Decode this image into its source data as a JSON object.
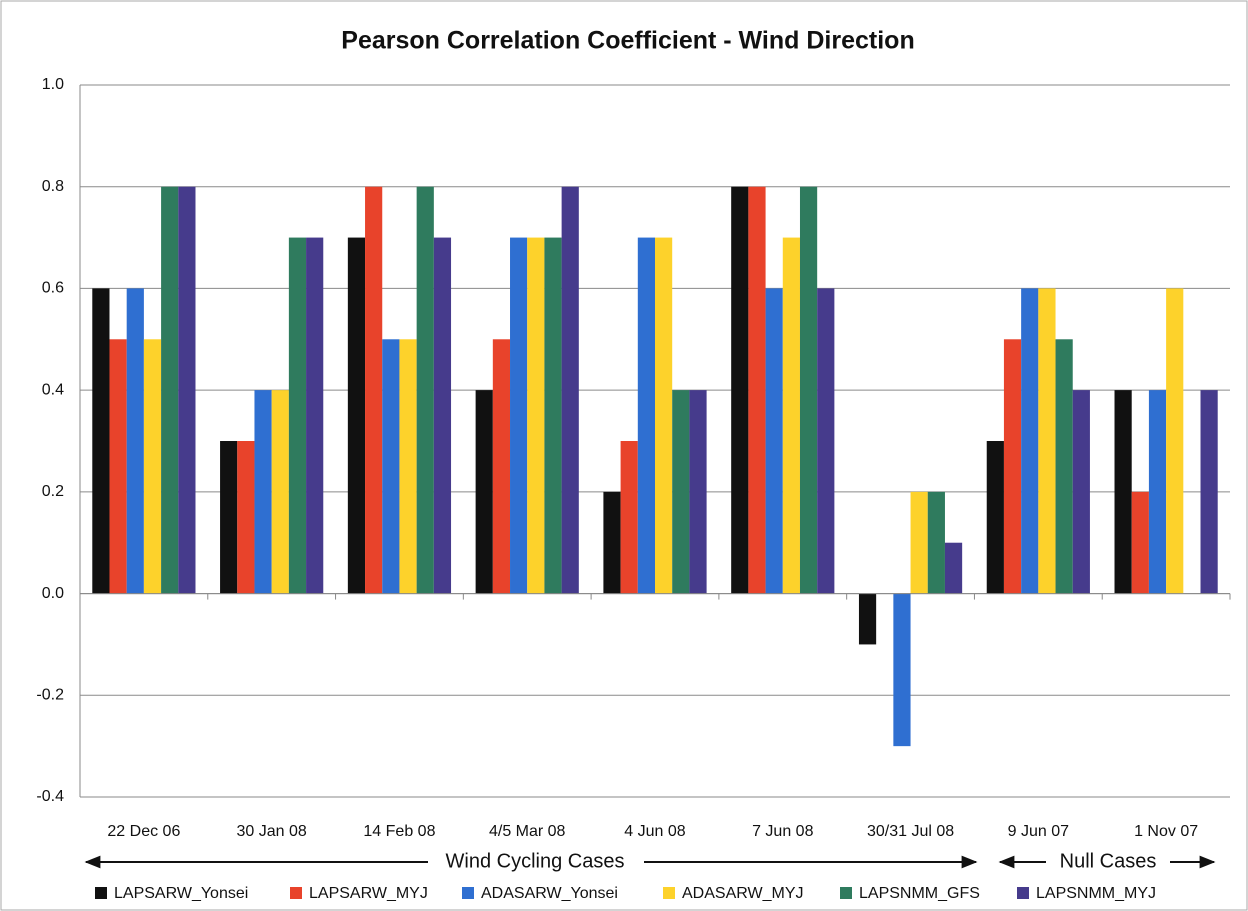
{
  "chart_data": {
    "type": "bar",
    "title": "Pearson Correlation Coefficient - Wind Direction",
    "categories": [
      "22 Dec 06",
      "30 Jan 08",
      "14 Feb 08",
      "4/5 Mar 08",
      "4 Jun 08",
      "7 Jun 08",
      "30/31 Jul 08",
      "9 Jun 07",
      "1 Nov 07"
    ],
    "series": [
      {
        "name": "LAPSARW_Yonsei",
        "color": "#111111",
        "values": [
          0.6,
          0.3,
          0.7,
          0.4,
          0.2,
          0.8,
          -0.1,
          0.3,
          0.4
        ]
      },
      {
        "name": "LAPSARW_MYJ",
        "color": "#e8432b",
        "values": [
          0.5,
          0.3,
          0.8,
          0.5,
          0.3,
          0.8,
          0,
          0.5,
          0.2
        ]
      },
      {
        "name": "ADASARW_Yonsei",
        "color": "#2f6fd1",
        "values": [
          0.6,
          0.4,
          0.5,
          0.7,
          0.7,
          0.6,
          -0.3,
          0.6,
          0.4
        ]
      },
      {
        "name": "ADASARW_MYJ",
        "color": "#fdd22b",
        "values": [
          0.5,
          0.4,
          0.5,
          0.7,
          0.7,
          0.7,
          0.2,
          0.6,
          0.6
        ]
      },
      {
        "name": "LAPSNMM_GFS",
        "color": "#2f7b5e",
        "values": [
          0.8,
          0.7,
          0.8,
          0.7,
          0.4,
          0.8,
          0.2,
          0.5,
          0
        ]
      },
      {
        "name": "LAPSNMM_MYJ",
        "color": "#463b8c",
        "values": [
          0.8,
          0.7,
          0.7,
          0.8,
          0.4,
          0.6,
          0.1,
          0.4,
          0.4
        ]
      }
    ],
    "annotations": [
      "Wind Cycling Cases",
      "Null Cases"
    ],
    "ylim": [
      -0.4,
      1.0
    ],
    "yticks": [
      {
        "value": 1,
        "label": "1.0"
      },
      0.8,
      0.6,
      0.4,
      0.2,
      {
        "value": 0,
        "label": "0.0"
      },
      -0.2,
      -0.4
    ],
    "grid": true,
    "legend": "bottom"
  }
}
